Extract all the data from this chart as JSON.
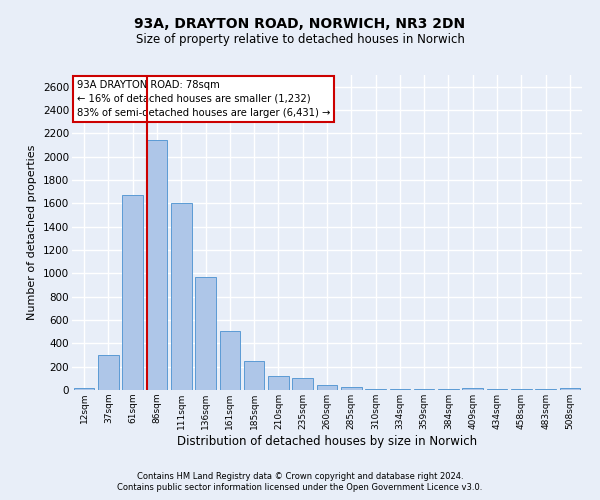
{
  "title1": "93A, DRAYTON ROAD, NORWICH, NR3 2DN",
  "title2": "Size of property relative to detached houses in Norwich",
  "xlabel": "Distribution of detached houses by size in Norwich",
  "ylabel": "Number of detached properties",
  "categories": [
    "12sqm",
    "37sqm",
    "61sqm",
    "86sqm",
    "111sqm",
    "136sqm",
    "161sqm",
    "185sqm",
    "210sqm",
    "235sqm",
    "260sqm",
    "285sqm",
    "310sqm",
    "334sqm",
    "359sqm",
    "384sqm",
    "409sqm",
    "434sqm",
    "458sqm",
    "483sqm",
    "508sqm"
  ],
  "values": [
    20,
    300,
    1670,
    2140,
    1600,
    970,
    510,
    245,
    120,
    100,
    40,
    30,
    10,
    10,
    5,
    5,
    20,
    5,
    5,
    5,
    20
  ],
  "bar_color": "#aec6e8",
  "bar_edge_color": "#5b9bd5",
  "annotation_title": "93A DRAYTON ROAD: 78sqm",
  "annotation_line1": "← 16% of detached houses are smaller (1,232)",
  "annotation_line2": "83% of semi-detached houses are larger (6,431) →",
  "vline_bin_index": 3,
  "ylim": [
    0,
    2700
  ],
  "yticks": [
    0,
    200,
    400,
    600,
    800,
    1000,
    1200,
    1400,
    1600,
    1800,
    2000,
    2200,
    2400,
    2600
  ],
  "footnote1": "Contains HM Land Registry data © Crown copyright and database right 2024.",
  "footnote2": "Contains public sector information licensed under the Open Government Licence v3.0.",
  "bg_color": "#e8eef8",
  "grid_color": "#ffffff",
  "annotation_box_color": "#ffffff",
  "annotation_box_edge": "#cc0000",
  "vline_color": "#cc0000"
}
